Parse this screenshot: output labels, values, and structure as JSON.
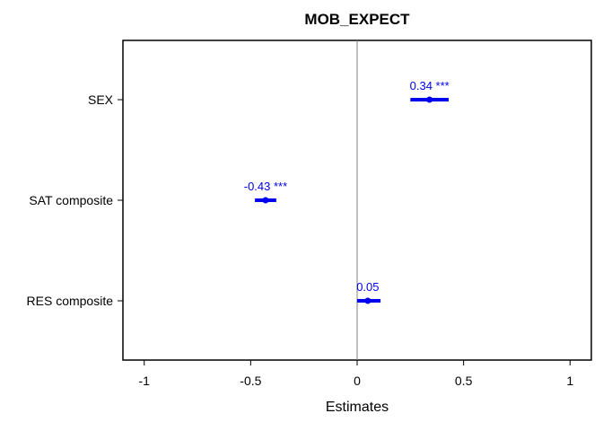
{
  "chart_data": {
    "type": "forest",
    "title": "MOB_EXPECT",
    "xlabel": "Estimates",
    "ylabel": "",
    "xlim": [
      -1.1,
      1.1
    ],
    "xticks": [
      -1,
      -0.5,
      0,
      0.5,
      1
    ],
    "xtick_labels": [
      "-1",
      "-0.5",
      "0",
      "0.5",
      "1"
    ],
    "reference_line": 0,
    "grid": false,
    "point_color": "#0000ee",
    "rows": [
      {
        "term": "SEX",
        "estimate": 0.34,
        "ci_low": 0.25,
        "ci_high": 0.43,
        "label": "0.34 ***"
      },
      {
        "term": "SAT composite",
        "estimate": -0.43,
        "ci_low": -0.48,
        "ci_high": -0.38,
        "label": "-0.43 ***"
      },
      {
        "term": "RES composite",
        "estimate": 0.05,
        "ci_low": 0.0,
        "ci_high": 0.11,
        "label": "0.05"
      }
    ]
  }
}
